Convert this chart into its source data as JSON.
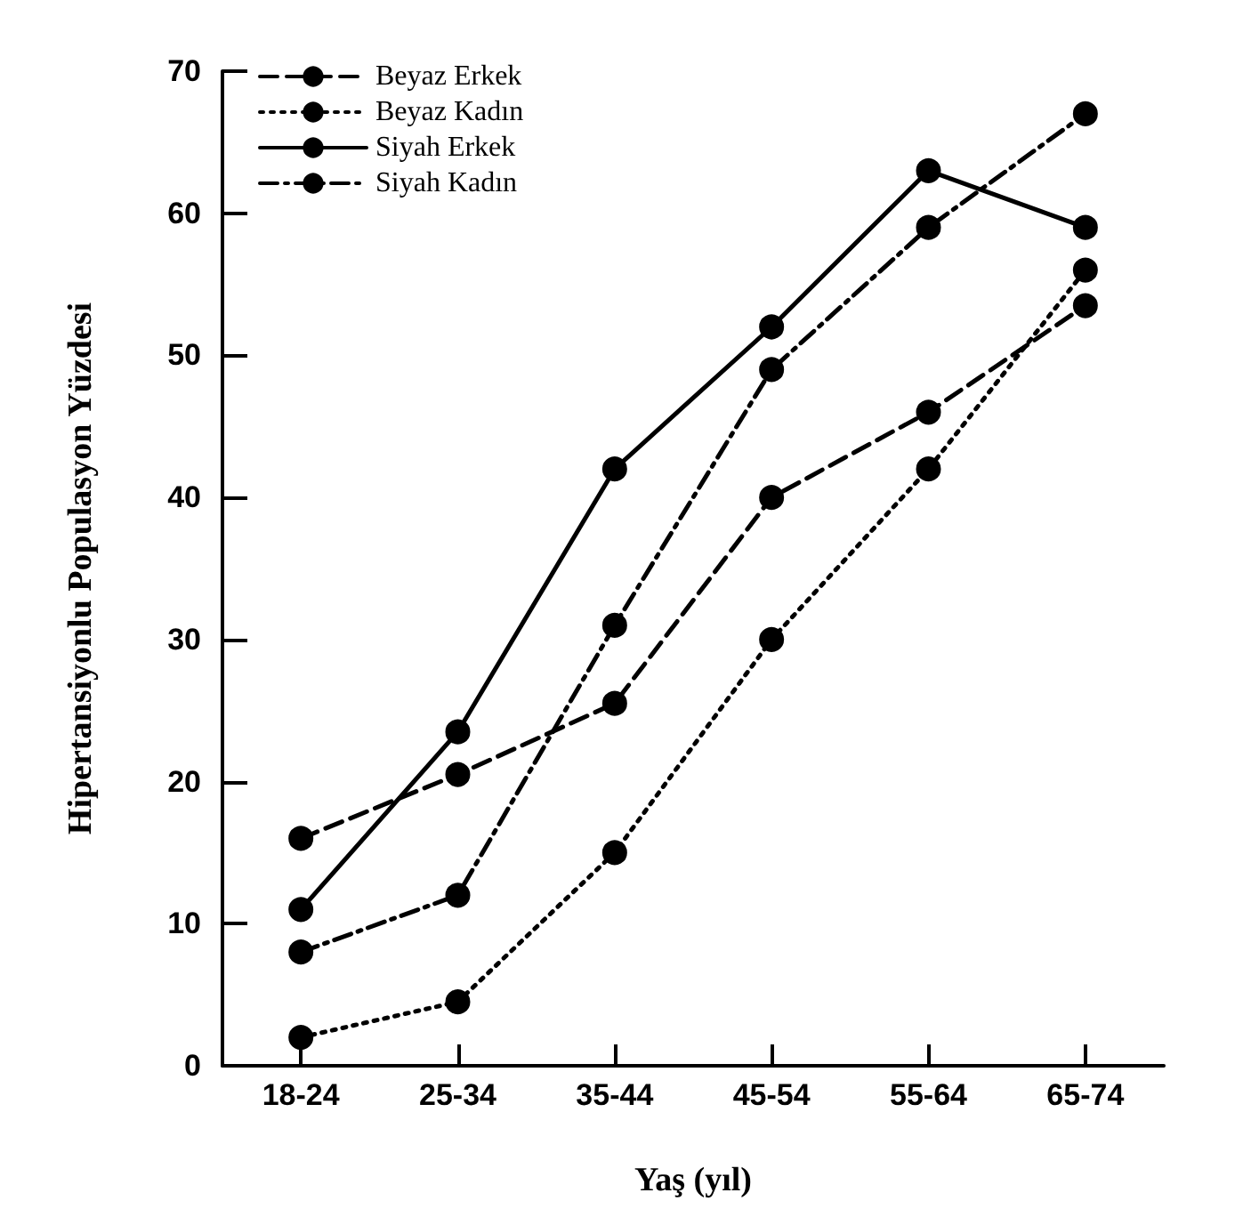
{
  "chart_data": {
    "type": "line",
    "xlabel": "Yaş (yıl)",
    "ylabel": "Hipertansiyonlu Populasyon Yüzdesi",
    "categories": [
      "18-24",
      "25-34",
      "35-44",
      "45-54",
      "55-64",
      "65-74"
    ],
    "series": [
      {
        "name": "Beyaz Erkek",
        "color": "#000000",
        "line_style": "dashed",
        "values": [
          16,
          20.5,
          25.5,
          40,
          46,
          53.5
        ]
      },
      {
        "name": "Beyaz Kadın",
        "color": "#000000",
        "line_style": "dotted",
        "values": [
          2,
          4.5,
          15,
          30,
          42,
          56
        ]
      },
      {
        "name": "Siyah Erkek",
        "color": "#000000",
        "line_style": "solid",
        "values": [
          11,
          23.5,
          42,
          52,
          63,
          59
        ]
      },
      {
        "name": "Siyah Kadın",
        "color": "#000000",
        "line_style": "dashdot",
        "values": [
          8,
          12,
          31,
          49,
          59,
          67
        ]
      }
    ],
    "ylim": [
      0,
      70
    ],
    "yticks": [
      0,
      10,
      20,
      30,
      40,
      50,
      60,
      70
    ],
    "grid": false,
    "legend": "top left",
    "marker": "circle"
  }
}
